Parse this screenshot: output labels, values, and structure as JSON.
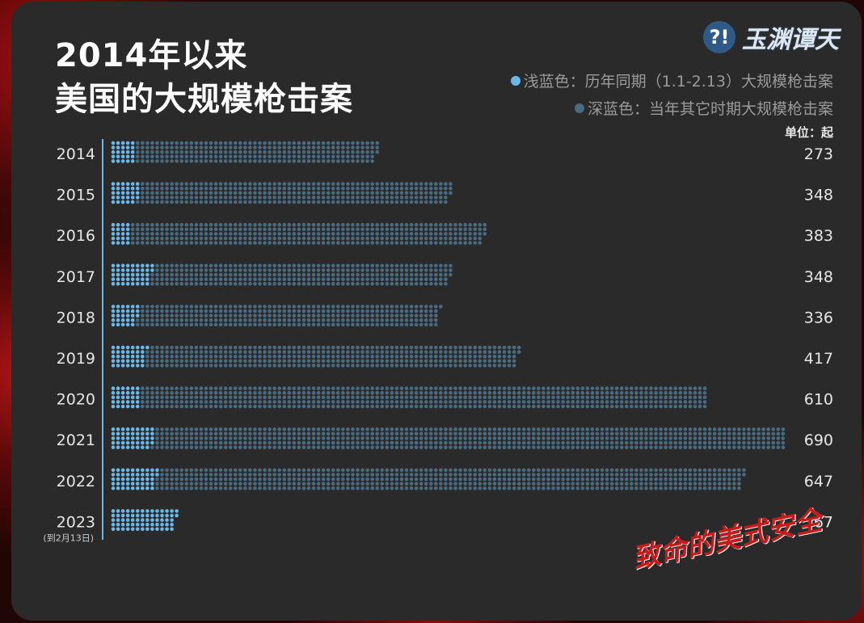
{
  "title_lines": [
    "2014年以来",
    "美国的大规模枪击案"
  ],
  "logo_text": "玉渊谭天",
  "stamp_text": "致命的美式安全",
  "legend": [
    {
      "label": "浅蓝色：历年同期（1.1-2.13）大规模枪击案",
      "color": "#6bb8e8"
    },
    {
      "label": "深蓝色：当年其它时期大规模枪击案",
      "color": "#4a6a80"
    }
  ],
  "unit": "单位：起",
  "chart_data": {
    "type": "bar",
    "style": "dot-matrix stacked horizontal bar, 5 dots per column",
    "categories": [
      "2014",
      "2015",
      "2016",
      "2017",
      "2018",
      "2019",
      "2020",
      "2021",
      "2022",
      "2023"
    ],
    "category_notes": {
      "2023": "(到2月13日)"
    },
    "totals": [
      273,
      348,
      383,
      348,
      336,
      417,
      610,
      690,
      647,
      67
    ],
    "series": [
      {
        "name": "浅蓝色：历年同期（1.1-2.13）大规模枪击案",
        "color": "#6bb8e8",
        "values": [
          25,
          29,
          20,
          42,
          28,
          36,
          30,
          44,
          47,
          67
        ]
      },
      {
        "name": "深蓝色：当年其它时期大规模枪击案",
        "color": "#4a6a80",
        "values": [
          248,
          319,
          363,
          306,
          308,
          381,
          580,
          646,
          600,
          0
        ]
      }
    ],
    "grid": false,
    "legend_position": "top-right"
  }
}
